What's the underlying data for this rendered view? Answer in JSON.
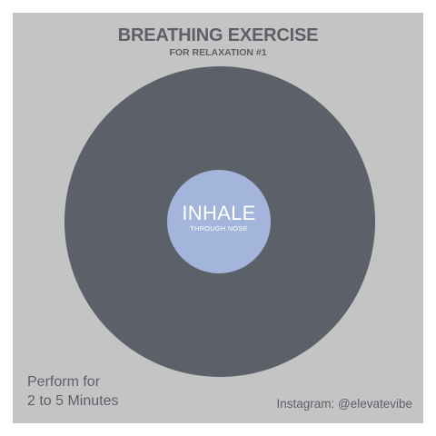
{
  "header": {
    "title": "BREATHING EXERCISE",
    "subtitle": "FOR RELAXATION #1"
  },
  "center": {
    "action": "INHALE",
    "instruction": "THROUGH NOSE"
  },
  "footer": {
    "perform_line1": "Perform for",
    "perform_line2": "2 to 5 Minutes",
    "social": "Instagram: @elevatevibe"
  },
  "colors": {
    "background": "#c4c4c4",
    "outer_circle": "#5c6169",
    "inner_circle": "#a3b5da",
    "text_dark": "#5c6169",
    "text_light": "#ffffff"
  }
}
